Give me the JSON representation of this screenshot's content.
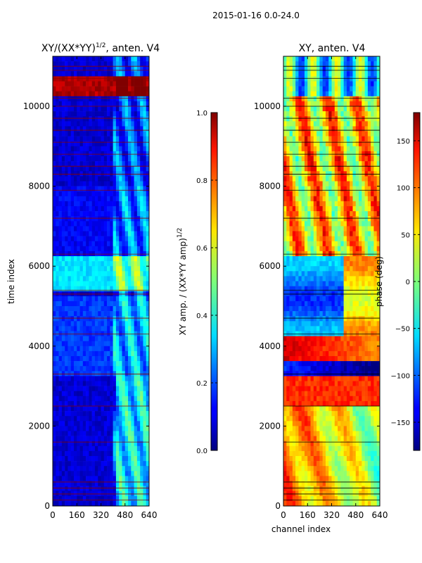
{
  "figure": {
    "suptitle": "2015-01-16 0.0-24.0"
  },
  "chart_data": [
    {
      "type": "heatmap",
      "title": "XY/(XX*YY)",
      "title_sup": "1/2",
      "title_tail": ", anten. V4",
      "xlabel": "",
      "ylabel": "time index",
      "xlim": [
        0,
        640
      ],
      "ylim": [
        0,
        11250
      ],
      "xticks": [
        0,
        160,
        320,
        480,
        640
      ],
      "yticks": [
        0,
        2000,
        4000,
        6000,
        8000,
        10000
      ],
      "colormap": "jet",
      "colorbar": {
        "label": "XY amp. / (XX*YY amp)",
        "label_sup": "1/2",
        "vmin": 0.0,
        "vmax": 1.0,
        "ticks": [
          "0.0",
          "0.2",
          "0.4",
          "0.6",
          "0.8",
          "1.0"
        ],
        "tick_values": [
          0.0,
          0.2,
          0.4,
          0.6,
          0.8,
          1.0
        ]
      },
      "description": "normalized cross-correlation amplitude per channel vs time"
    },
    {
      "type": "heatmap",
      "title": "XY, anten. V4",
      "xlabel": "channel index",
      "ylabel": "",
      "xlim": [
        0,
        640
      ],
      "ylim": [
        0,
        11250
      ],
      "xticks": [
        0,
        160,
        320,
        480,
        640
      ],
      "yticks": [
        0,
        2000,
        4000,
        6000,
        8000,
        10000
      ],
      "colormap": "jet",
      "colorbar": {
        "label": "phase (deg)",
        "vmin": -180,
        "vmax": 180,
        "ticks": [
          "−150",
          "−100",
          "−50",
          "0",
          "50",
          "100",
          "150"
        ],
        "tick_values": [
          -150,
          -100,
          -50,
          0,
          50,
          100,
          150
        ]
      },
      "description": "cross-correlation phase per channel vs time"
    }
  ]
}
